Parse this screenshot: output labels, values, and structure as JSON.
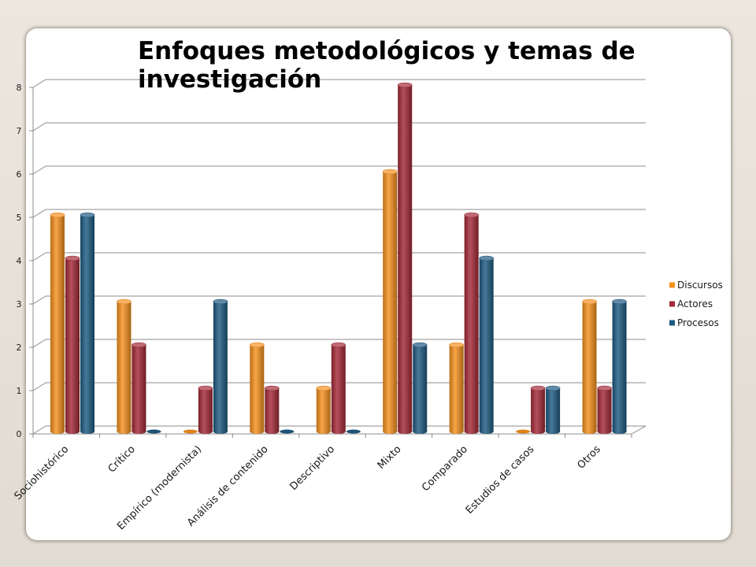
{
  "chart_data": {
    "type": "bar",
    "bar_shape": "cylinder",
    "title": "Enfoques metodológicos y temas de investigación",
    "categories": [
      "Sociohistórico",
      "Crítico",
      "Empírico (modernista)",
      "Análisis de contenido",
      "Descriptivo",
      "Mixto",
      "Comparado",
      "Estudios de casos",
      "Otros"
    ],
    "series": [
      {
        "name": "Discursos",
        "values": [
          5,
          3,
          0,
          2,
          1,
          6,
          2,
          0,
          3
        ],
        "color": "#f7911e"
      },
      {
        "name": "Actores",
        "values": [
          4,
          2,
          1,
          1,
          2,
          8,
          5,
          1,
          1
        ],
        "color": "#a52a38"
      },
      {
        "name": "Procesos",
        "values": [
          5,
          0,
          3,
          0,
          0,
          2,
          4,
          1,
          3
        ],
        "color": "#1e5b82"
      }
    ],
    "y_ticks": [
      0,
      1,
      2,
      3,
      4,
      5,
      6,
      7,
      8
    ],
    "ylim": [
      0,
      8
    ],
    "grid": true,
    "legend": "right"
  }
}
